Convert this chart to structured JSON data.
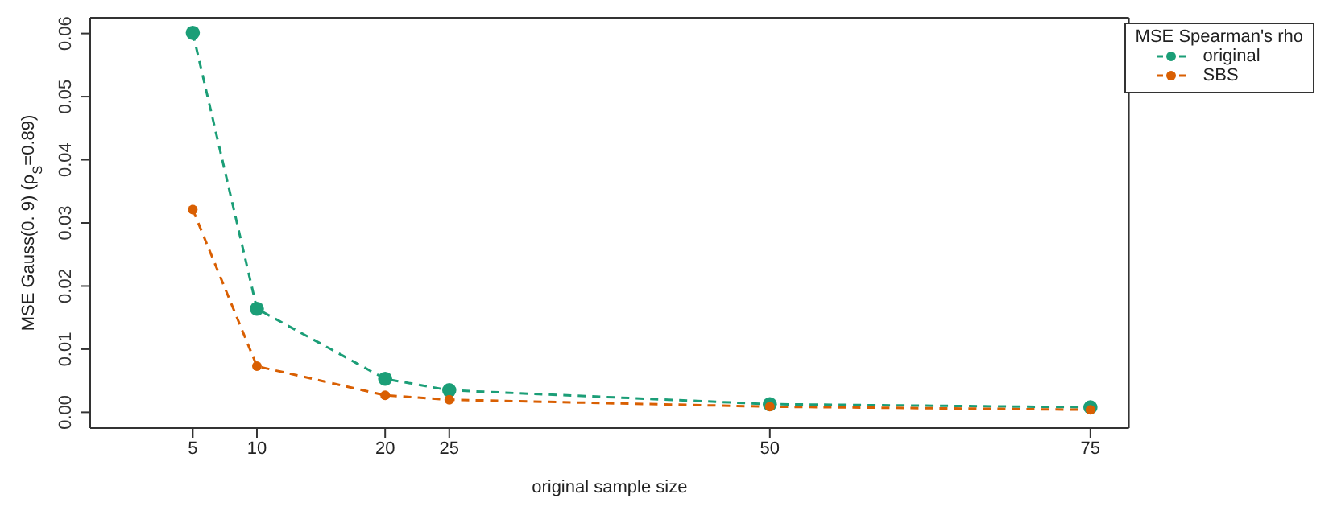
{
  "chart_data": {
    "type": "line",
    "xlabel": "original sample size",
    "ylabel": "MSE Gauss(0. 9) (ρ$_{S}$=0.89)",
    "legend_title": "MSE Spearman's rho",
    "x": [
      5,
      10,
      20,
      25,
      50,
      75
    ],
    "series": [
      {
        "name": "original",
        "color": "#1b9e77",
        "values": [
          0.0601,
          0.0164,
          0.0053,
          0.0035,
          0.0013,
          0.0008
        ]
      },
      {
        "name": "SBS",
        "color": "#d95f02",
        "values": [
          0.0321,
          0.0073,
          0.0027,
          0.002,
          0.0009,
          0.0004
        ]
      }
    ],
    "xlim": [
      -3,
      78
    ],
    "xticks": [
      5,
      10,
      20,
      25,
      50,
      75
    ],
    "ylim": [
      -0.0025,
      0.0625
    ],
    "yticks": [
      {
        "value": 0,
        "label": "0.00"
      },
      {
        "value": 0.01,
        "label": "0.01"
      },
      {
        "value": 0.02,
        "label": "0.02"
      },
      {
        "value": 0.03,
        "label": "0.03"
      },
      {
        "value": 0.04,
        "label": "0.04"
      },
      {
        "value": 0.05,
        "label": "0.05"
      },
      {
        "value": 0.06,
        "label": "0.06"
      }
    ],
    "grid": false,
    "legend": "top right",
    "marker": "circle",
    "line_style": "dashed"
  }
}
